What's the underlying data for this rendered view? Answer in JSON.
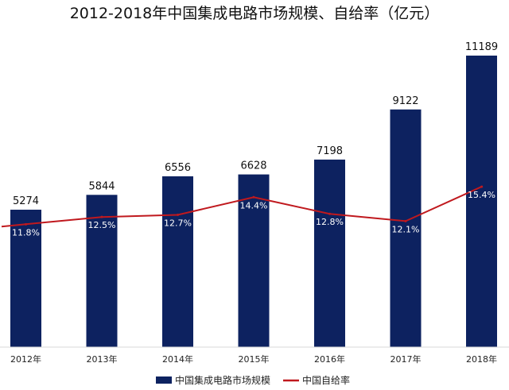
{
  "chart_data": {
    "type": "bar",
    "title": "2012-2018年中国集成电路市场规模、自给率（亿元）",
    "categories": [
      "2012年",
      "2013年",
      "2014年",
      "2015年",
      "2016年",
      "2017年",
      "2018年"
    ],
    "series": [
      {
        "name": "中国集成电路市场规模",
        "type": "bar",
        "color": "#0d2260",
        "values": [
          5274,
          5844,
          6556,
          6628,
          7198,
          9122,
          11189
        ],
        "labels": [
          "5274",
          "5844",
          "6556",
          "6628",
          "7198",
          "9122",
          "11189"
        ]
      },
      {
        "name": "中国自给率",
        "type": "line",
        "color": "#c0191e",
        "values": [
          11.8,
          12.5,
          12.7,
          14.4,
          12.8,
          12.1,
          15.4
        ],
        "labels": [
          "11.8%",
          "12.5%",
          "12.7%",
          "14.4%",
          "12.8%",
          "12.1%",
          "15.4%"
        ]
      }
    ],
    "ylim": [
      0,
      11189
    ],
    "rate_ylim": [
      0,
      28
    ],
    "grid": false,
    "legend": "bottom"
  }
}
